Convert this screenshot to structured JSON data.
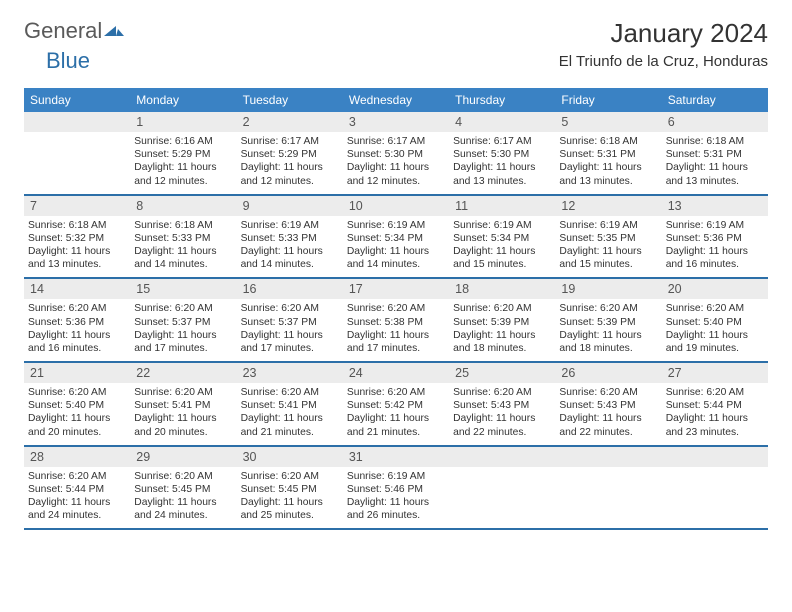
{
  "brand": {
    "part1": "General",
    "part2": "Blue"
  },
  "title": "January 2024",
  "location": "El Triunfo de la Cruz, Honduras",
  "day_headers": [
    "Sunday",
    "Monday",
    "Tuesday",
    "Wednesday",
    "Thursday",
    "Friday",
    "Saturday"
  ],
  "colors": {
    "header_bg": "#3a82c4",
    "header_text": "#ffffff",
    "row_divider": "#2c6fa8",
    "daynum_bg": "#ececec",
    "page_bg": "#ffffff",
    "text": "#333333"
  },
  "weeks": [
    [
      {
        "num": "",
        "lines": []
      },
      {
        "num": "1",
        "lines": [
          "Sunrise: 6:16 AM",
          "Sunset: 5:29 PM",
          "Daylight: 11 hours and 12 minutes."
        ]
      },
      {
        "num": "2",
        "lines": [
          "Sunrise: 6:17 AM",
          "Sunset: 5:29 PM",
          "Daylight: 11 hours and 12 minutes."
        ]
      },
      {
        "num": "3",
        "lines": [
          "Sunrise: 6:17 AM",
          "Sunset: 5:30 PM",
          "Daylight: 11 hours and 12 minutes."
        ]
      },
      {
        "num": "4",
        "lines": [
          "Sunrise: 6:17 AM",
          "Sunset: 5:30 PM",
          "Daylight: 11 hours and 13 minutes."
        ]
      },
      {
        "num": "5",
        "lines": [
          "Sunrise: 6:18 AM",
          "Sunset: 5:31 PM",
          "Daylight: 11 hours and 13 minutes."
        ]
      },
      {
        "num": "6",
        "lines": [
          "Sunrise: 6:18 AM",
          "Sunset: 5:31 PM",
          "Daylight: 11 hours and 13 minutes."
        ]
      }
    ],
    [
      {
        "num": "7",
        "lines": [
          "Sunrise: 6:18 AM",
          "Sunset: 5:32 PM",
          "Daylight: 11 hours and 13 minutes."
        ]
      },
      {
        "num": "8",
        "lines": [
          "Sunrise: 6:18 AM",
          "Sunset: 5:33 PM",
          "Daylight: 11 hours and 14 minutes."
        ]
      },
      {
        "num": "9",
        "lines": [
          "Sunrise: 6:19 AM",
          "Sunset: 5:33 PM",
          "Daylight: 11 hours and 14 minutes."
        ]
      },
      {
        "num": "10",
        "lines": [
          "Sunrise: 6:19 AM",
          "Sunset: 5:34 PM",
          "Daylight: 11 hours and 14 minutes."
        ]
      },
      {
        "num": "11",
        "lines": [
          "Sunrise: 6:19 AM",
          "Sunset: 5:34 PM",
          "Daylight: 11 hours and 15 minutes."
        ]
      },
      {
        "num": "12",
        "lines": [
          "Sunrise: 6:19 AM",
          "Sunset: 5:35 PM",
          "Daylight: 11 hours and 15 minutes."
        ]
      },
      {
        "num": "13",
        "lines": [
          "Sunrise: 6:19 AM",
          "Sunset: 5:36 PM",
          "Daylight: 11 hours and 16 minutes."
        ]
      }
    ],
    [
      {
        "num": "14",
        "lines": [
          "Sunrise: 6:20 AM",
          "Sunset: 5:36 PM",
          "Daylight: 11 hours and 16 minutes."
        ]
      },
      {
        "num": "15",
        "lines": [
          "Sunrise: 6:20 AM",
          "Sunset: 5:37 PM",
          "Daylight: 11 hours and 17 minutes."
        ]
      },
      {
        "num": "16",
        "lines": [
          "Sunrise: 6:20 AM",
          "Sunset: 5:37 PM",
          "Daylight: 11 hours and 17 minutes."
        ]
      },
      {
        "num": "17",
        "lines": [
          "Sunrise: 6:20 AM",
          "Sunset: 5:38 PM",
          "Daylight: 11 hours and 17 minutes."
        ]
      },
      {
        "num": "18",
        "lines": [
          "Sunrise: 6:20 AM",
          "Sunset: 5:39 PM",
          "Daylight: 11 hours and 18 minutes."
        ]
      },
      {
        "num": "19",
        "lines": [
          "Sunrise: 6:20 AM",
          "Sunset: 5:39 PM",
          "Daylight: 11 hours and 18 minutes."
        ]
      },
      {
        "num": "20",
        "lines": [
          "Sunrise: 6:20 AM",
          "Sunset: 5:40 PM",
          "Daylight: 11 hours and 19 minutes."
        ]
      }
    ],
    [
      {
        "num": "21",
        "lines": [
          "Sunrise: 6:20 AM",
          "Sunset: 5:40 PM",
          "Daylight: 11 hours and 20 minutes."
        ]
      },
      {
        "num": "22",
        "lines": [
          "Sunrise: 6:20 AM",
          "Sunset: 5:41 PM",
          "Daylight: 11 hours and 20 minutes."
        ]
      },
      {
        "num": "23",
        "lines": [
          "Sunrise: 6:20 AM",
          "Sunset: 5:41 PM",
          "Daylight: 11 hours and 21 minutes."
        ]
      },
      {
        "num": "24",
        "lines": [
          "Sunrise: 6:20 AM",
          "Sunset: 5:42 PM",
          "Daylight: 11 hours and 21 minutes."
        ]
      },
      {
        "num": "25",
        "lines": [
          "Sunrise: 6:20 AM",
          "Sunset: 5:43 PM",
          "Daylight: 11 hours and 22 minutes."
        ]
      },
      {
        "num": "26",
        "lines": [
          "Sunrise: 6:20 AM",
          "Sunset: 5:43 PM",
          "Daylight: 11 hours and 22 minutes."
        ]
      },
      {
        "num": "27",
        "lines": [
          "Sunrise: 6:20 AM",
          "Sunset: 5:44 PM",
          "Daylight: 11 hours and 23 minutes."
        ]
      }
    ],
    [
      {
        "num": "28",
        "lines": [
          "Sunrise: 6:20 AM",
          "Sunset: 5:44 PM",
          "Daylight: 11 hours and 24 minutes."
        ]
      },
      {
        "num": "29",
        "lines": [
          "Sunrise: 6:20 AM",
          "Sunset: 5:45 PM",
          "Daylight: 11 hours and 24 minutes."
        ]
      },
      {
        "num": "30",
        "lines": [
          "Sunrise: 6:20 AM",
          "Sunset: 5:45 PM",
          "Daylight: 11 hours and 25 minutes."
        ]
      },
      {
        "num": "31",
        "lines": [
          "Sunrise: 6:19 AM",
          "Sunset: 5:46 PM",
          "Daylight: 11 hours and 26 minutes."
        ]
      },
      {
        "num": "",
        "lines": []
      },
      {
        "num": "",
        "lines": []
      },
      {
        "num": "",
        "lines": []
      }
    ]
  ]
}
